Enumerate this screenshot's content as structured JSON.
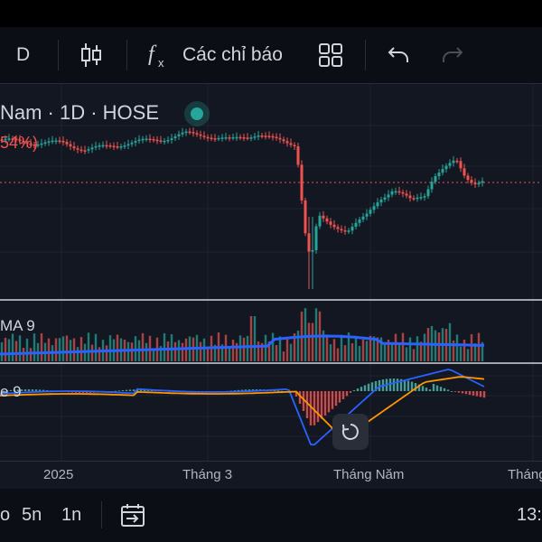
{
  "toolbar": {
    "interval_label": "D",
    "indicators_label": "Các chỉ báo"
  },
  "legend": {
    "title": "Nam · 1D · HOSE",
    "change_pct": "54%)"
  },
  "panes": {
    "volume_label": "MA 9",
    "macd_label": "e 9"
  },
  "xaxis": {
    "labels": [
      "2025",
      "Tháng 3",
      "Tháng Năm",
      "Tháng"
    ]
  },
  "bottom": {
    "ranges": [
      "o",
      "5n",
      "1n"
    ],
    "time": "13:"
  },
  "colors": {
    "up": "#26a69a",
    "down": "#ef5350",
    "macd_line": "#2962ff",
    "signal_line": "#ff9800",
    "volume_ma": "#2962ff",
    "price_line": "#ef5350"
  },
  "icons": [
    "candlestick-icon",
    "fx-icon",
    "layout-grid-icon",
    "undo-icon",
    "redo-icon",
    "reset-view-icon",
    "date-range-icon",
    "live-indicator-icon"
  ]
}
